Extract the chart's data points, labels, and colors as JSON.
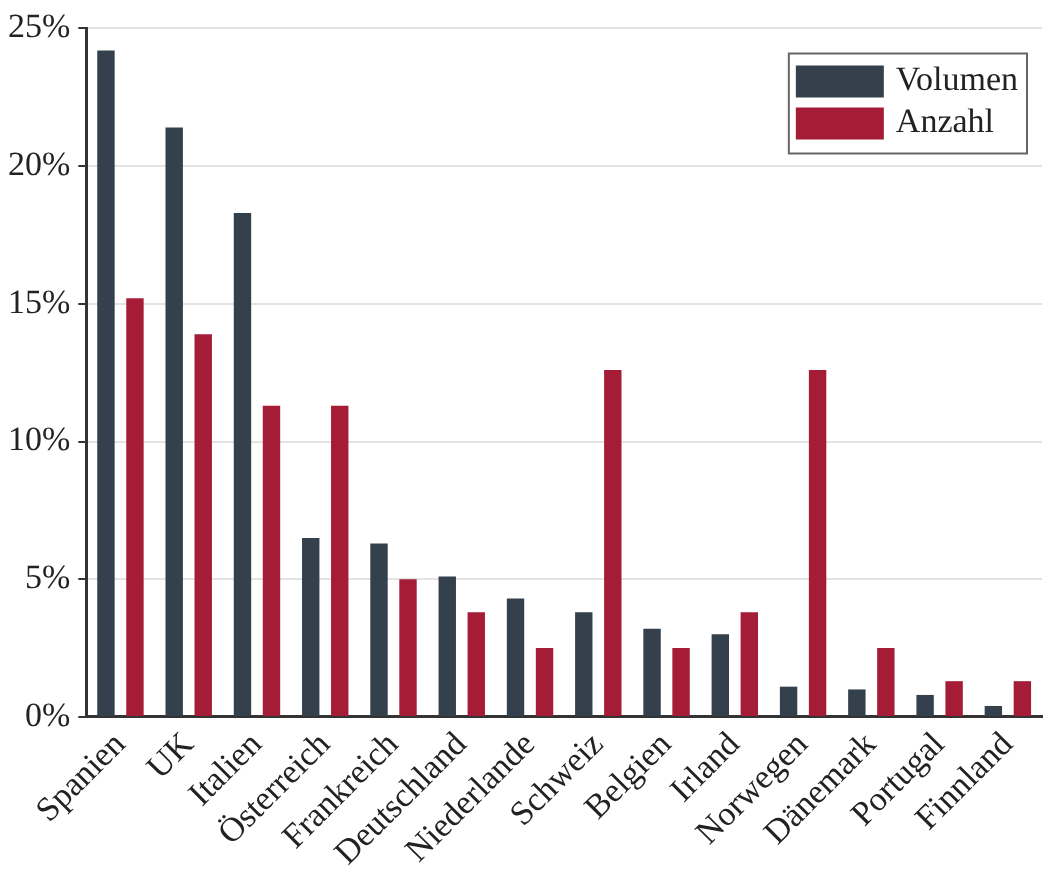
{
  "chart_data": {
    "type": "bar",
    "categories": [
      "Spanien",
      "UK",
      "Italien",
      "Österreich",
      "Frankreich",
      "Deutschland",
      "Niederlande",
      "Schweiz",
      "Belgien",
      "Irland",
      "Norwegen",
      "Dänemark",
      "Portugal",
      "Finnland"
    ],
    "series": [
      {
        "name": "Volumen",
        "color": "#34404b",
        "values": [
          24.2,
          21.4,
          18.3,
          6.5,
          6.3,
          5.1,
          4.3,
          3.8,
          3.2,
          3.0,
          1.1,
          1.0,
          0.8,
          0.4
        ]
      },
      {
        "name": "Anzahl",
        "color": "#a51c37",
        "values": [
          15.2,
          13.9,
          11.3,
          11.3,
          5.0,
          3.8,
          2.5,
          12.6,
          2.5,
          3.8,
          12.6,
          2.5,
          1.3,
          1.3
        ]
      }
    ],
    "ylim": [
      0,
      25
    ],
    "yticks": [
      {
        "value": 0,
        "label": "0%"
      },
      {
        "value": 5,
        "label": "5%"
      },
      {
        "value": 10,
        "label": "10%"
      },
      {
        "value": 15,
        "label": "15%"
      },
      {
        "value": 20,
        "label": "20%"
      },
      {
        "value": 25,
        "label": "25%"
      }
    ],
    "grid": "y",
    "legend": "top right"
  }
}
